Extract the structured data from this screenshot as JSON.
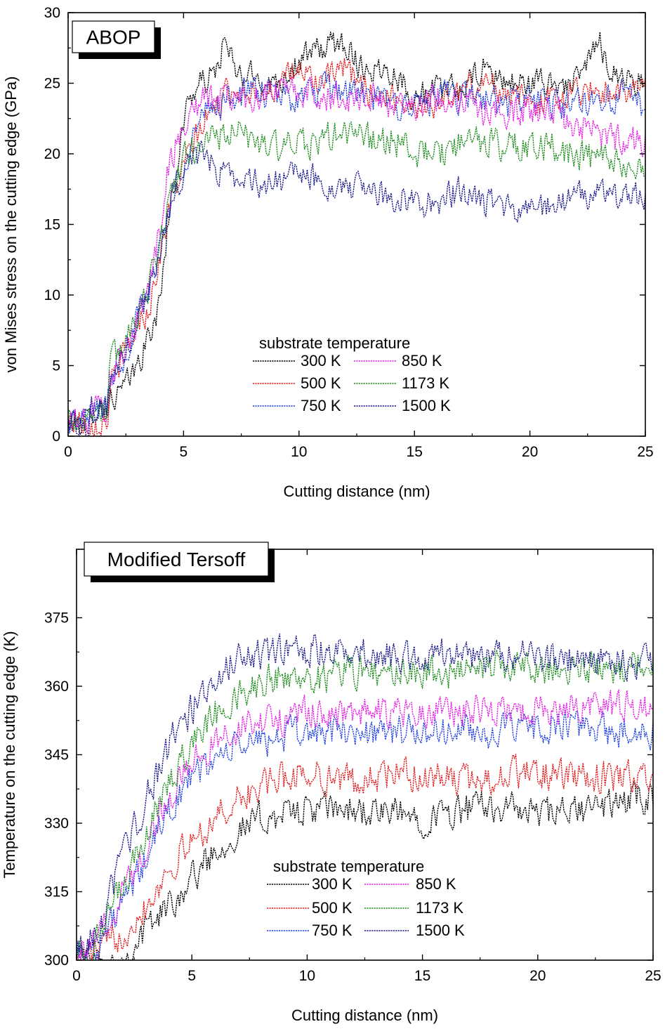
{
  "chart_data": [
    {
      "type": "line",
      "badge": "ABOP",
      "xlabel": "Cutting distance (nm)",
      "ylabel": "von Mises stress on the cutting edge (GPa)",
      "xlim": [
        0,
        25
      ],
      "ylim": [
        0,
        30
      ],
      "xticks": [
        "0",
        "5",
        "10",
        "15",
        "20",
        "25"
      ],
      "yticks": [
        "0",
        "5",
        "10",
        "15",
        "20",
        "25",
        "30"
      ],
      "legend_title": "substrate temperature",
      "legend_placement": "lower-center",
      "series": [
        {
          "name": "300 K",
          "color": "#000000",
          "noise": 0.9,
          "x": [
            0,
            0.9,
            1.0,
            1.7,
            1.8,
            2.5,
            3.0,
            3.5,
            4.0,
            4.3,
            4.8,
            5.2,
            5.8,
            6.3,
            6.8,
            7.3,
            8,
            9,
            10,
            11,
            12,
            12.5,
            13,
            14,
            15,
            16,
            17,
            18,
            19,
            20,
            21,
            22,
            23,
            23.5,
            24,
            25
          ],
          "y": [
            1,
            1,
            2,
            2,
            2.5,
            3.5,
            5,
            7,
            9.5,
            15,
            20,
            24,
            25,
            25.5,
            28,
            25.5,
            25.5,
            25,
            26.5,
            27.5,
            28,
            26.5,
            26,
            26,
            24,
            24.5,
            24.5,
            26,
            25,
            25,
            25,
            25,
            28,
            26,
            25.5,
            25
          ]
        },
        {
          "name": "500 K",
          "color": "#e31a1c",
          "noise": 0.9,
          "x": [
            0,
            0.9,
            1.0,
            1.7,
            1.8,
            2.5,
            3.0,
            3.5,
            4.0,
            4.5,
            5.0,
            5.5,
            6,
            7,
            8,
            9,
            10,
            11,
            12,
            13,
            14,
            15,
            16,
            17,
            18,
            19,
            20,
            21,
            22,
            23,
            24,
            25
          ],
          "y": [
            1,
            1,
            1,
            1,
            3.5,
            6,
            8,
            9,
            13,
            17,
            19,
            21,
            22.5,
            24.5,
            24.5,
            24.5,
            26,
            25,
            26,
            24.5,
            24,
            23.5,
            23.5,
            24.5,
            25,
            24.5,
            23.5,
            24,
            24.5,
            24.5,
            24.5,
            24.5
          ]
        },
        {
          "name": "750 K",
          "color": "#1f3fe0",
          "noise": 1.0,
          "x": [
            0,
            0.9,
            1.0,
            1.7,
            1.8,
            2.5,
            3.0,
            3.5,
            4.0,
            4.5,
            5.0,
            5.5,
            6,
            7,
            8,
            9,
            10,
            11,
            12,
            13,
            14,
            15,
            16,
            17,
            18,
            19,
            20,
            21,
            22,
            23,
            24,
            25
          ],
          "y": [
            1,
            1,
            2,
            2,
            4,
            6,
            8.5,
            10,
            14,
            17,
            19.5,
            21.5,
            23,
            24,
            24.5,
            24,
            24,
            24.5,
            24.5,
            24,
            23.5,
            23.5,
            24,
            24,
            24,
            23.5,
            24,
            23.5,
            23.5,
            24,
            24,
            23.5
          ]
        },
        {
          "name": "850 K",
          "color": "#e61de6",
          "noise": 1.0,
          "x": [
            0,
            0.9,
            1.0,
            1.7,
            1.8,
            2.5,
            3.0,
            3.5,
            4.0,
            4.3,
            4.8,
            5.3,
            6,
            7,
            8,
            9,
            10,
            11,
            12,
            13,
            14,
            15,
            16,
            17,
            18,
            19,
            20,
            21,
            22,
            23,
            24,
            25
          ],
          "y": [
            1,
            1,
            2,
            2,
            4,
            6,
            8.5,
            10.5,
            15,
            19,
            21,
            23,
            24,
            24,
            24,
            24.5,
            24.5,
            24,
            24,
            24,
            23.5,
            23.5,
            24,
            24,
            23,
            23,
            23,
            23,
            22,
            21.5,
            21,
            21
          ]
        },
        {
          "name": "1173 K",
          "color": "#1e8c1e",
          "noise": 1.0,
          "x": [
            0,
            0.9,
            1.0,
            1.7,
            1.8,
            2.5,
            3.0,
            3.5,
            4.0,
            4.5,
            5.0,
            5.5,
            6,
            7,
            8,
            9,
            10,
            11,
            12,
            13,
            14,
            15,
            16,
            17,
            18,
            19,
            20,
            21,
            22,
            23,
            24,
            25
          ],
          "y": [
            1.2,
            1.2,
            2,
            2,
            5,
            7,
            9,
            10.5,
            14,
            17.5,
            19.5,
            20.5,
            21,
            21.5,
            21,
            20.5,
            20.5,
            21,
            21.5,
            21,
            21,
            20,
            20,
            20.5,
            21,
            20.5,
            20.5,
            20.5,
            20,
            19.5,
            19,
            19
          ]
        },
        {
          "name": "1500 K",
          "color": "#1a1a8c",
          "noise": 0.9,
          "x": [
            0,
            0.9,
            1.0,
            1.7,
            1.8,
            2.5,
            3.0,
            3.5,
            4.0,
            4.5,
            5.0,
            5.5,
            6,
            7,
            8,
            9,
            10,
            11,
            12,
            13,
            14,
            15,
            16,
            17,
            18,
            19,
            20,
            21,
            22,
            23,
            24,
            25
          ],
          "y": [
            1,
            1,
            2,
            2,
            4,
            6,
            8.5,
            10,
            13.5,
            16.5,
            19,
            20,
            19.5,
            18.5,
            18,
            18,
            18.5,
            18,
            17.5,
            17.5,
            17,
            16.5,
            16.5,
            17.5,
            16.5,
            16,
            16,
            16.5,
            17,
            17,
            17,
            17
          ]
        }
      ]
    },
    {
      "type": "line",
      "badge": "Modified Tersoff",
      "xlabel": "Cutting distance (nm)",
      "ylabel": "Temperature on the cutting edge (K)",
      "xlim": [
        0,
        25
      ],
      "ylim": [
        300,
        390
      ],
      "xticks": [
        "0",
        "5",
        "10",
        "15",
        "20",
        "25"
      ],
      "yticks": [
        "300",
        "315",
        "330",
        "345",
        "360",
        "375"
      ],
      "legend_title": "substrate temperature",
      "legend_placement": "lower-center",
      "series": [
        {
          "name": "300 K",
          "color": "#000000",
          "noise": 3.2,
          "x": [
            0,
            0.5,
            1,
            2,
            2.5,
            3,
            4,
            5,
            6,
            7,
            8,
            9,
            10,
            11,
            12,
            13,
            14,
            15,
            16,
            17,
            18,
            19,
            20,
            21,
            22,
            23,
            24,
            25
          ],
          "y": [
            301,
            300,
            300,
            300,
            303,
            307,
            312,
            318,
            324,
            328,
            331,
            332,
            333,
            333,
            333,
            332,
            332,
            331,
            332,
            333,
            334,
            333,
            332,
            332,
            333,
            334,
            335,
            336
          ]
        },
        {
          "name": "500 K",
          "color": "#e31a1c",
          "noise": 3.2,
          "x": [
            0,
            0.5,
            1,
            2,
            3,
            4,
            5,
            6,
            7,
            8,
            9,
            10,
            11,
            12,
            13,
            14,
            15,
            16,
            17,
            18,
            19,
            20,
            21,
            22,
            23,
            24,
            25
          ],
          "y": [
            301,
            301,
            302,
            306,
            312,
            320,
            326,
            331,
            335,
            338,
            340,
            341,
            340,
            339,
            340,
            341,
            340,
            340,
            339,
            340,
            341,
            341,
            340,
            340,
            340,
            340,
            341
          ]
        },
        {
          "name": "750 K",
          "color": "#1f3fe0",
          "noise": 3.2,
          "x": [
            0,
            0.5,
            1,
            2,
            3,
            4,
            5,
            6,
            7,
            8,
            9,
            10,
            11,
            12,
            13,
            14,
            15,
            16,
            17,
            18,
            19,
            20,
            21,
            22,
            23,
            24,
            25
          ],
          "y": [
            302,
            302,
            304,
            312,
            322,
            333,
            340,
            344,
            347,
            348,
            349,
            350,
            350,
            350,
            350,
            350,
            350,
            350,
            350,
            350,
            350,
            351,
            351,
            351,
            350,
            350,
            350
          ]
        },
        {
          "name": "850 K",
          "color": "#e61de6",
          "noise": 3.2,
          "x": [
            0,
            0.5,
            1,
            2,
            3,
            4,
            5,
            6,
            7,
            8,
            9,
            10,
            11,
            12,
            13,
            14,
            15,
            16,
            17,
            18,
            19,
            20,
            21,
            22,
            23,
            24,
            25
          ],
          "y": [
            302,
            302,
            305,
            315,
            325,
            336,
            343,
            348,
            351,
            352,
            353,
            354,
            354,
            354,
            354,
            354,
            354,
            354,
            355,
            355,
            355,
            355,
            355,
            356,
            356,
            356,
            356
          ]
        },
        {
          "name": "1173 K",
          "color": "#1e8c1e",
          "noise": 3.2,
          "x": [
            0,
            0.5,
            1,
            2,
            3,
            4,
            5,
            6,
            7,
            8,
            9,
            10,
            11,
            12,
            13,
            14,
            15,
            16,
            17,
            18,
            19,
            20,
            21,
            22,
            23,
            24,
            25
          ],
          "y": [
            302,
            302,
            305,
            316,
            327,
            339,
            348,
            354,
            358,
            361,
            362,
            362,
            362,
            363,
            363,
            363,
            363,
            363,
            364,
            364,
            364,
            364,
            364,
            364,
            364,
            364,
            365
          ]
        },
        {
          "name": "1500 K",
          "color": "#1a1a8c",
          "noise": 3.2,
          "x": [
            0,
            0.5,
            1,
            2,
            3,
            4,
            5,
            6,
            7,
            8,
            9,
            10,
            11,
            12,
            13,
            14,
            15,
            16,
            17,
            18,
            19,
            20,
            21,
            22,
            23,
            24,
            25
          ],
          "y": [
            303,
            303,
            308,
            322,
            335,
            347,
            355,
            362,
            366,
            367,
            368,
            368,
            368,
            368,
            367,
            367,
            367,
            367,
            367,
            367,
            367,
            366,
            366,
            366,
            366,
            365,
            365
          ]
        }
      ]
    }
  ]
}
